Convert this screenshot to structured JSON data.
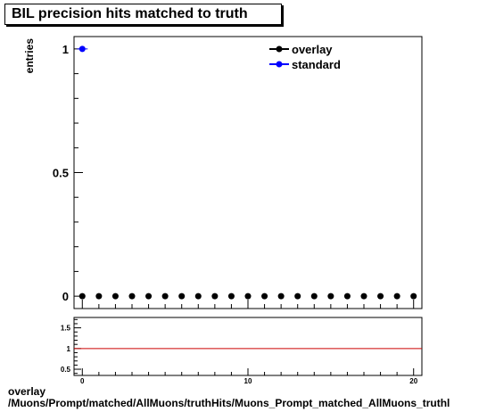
{
  "title": "BIL precision hits matched to truth",
  "ylabel": "entries",
  "footer": {
    "line1": "overlay",
    "line2": "/Muons/Prompt/matched/AllMuons/truthHits/Muons_Prompt_matched_AllMuons_truthl"
  },
  "legend": [
    {
      "label": "overlay",
      "color": "#000000"
    },
    {
      "label": "standard",
      "color": "#0000ff"
    }
  ],
  "chart_data": [
    {
      "type": "scatter",
      "title": "BIL precision hits matched to truth",
      "xlabel": "",
      "ylabel": "entries",
      "xlim": [
        -0.5,
        20.5
      ],
      "ylim": [
        -0.05,
        1.05
      ],
      "yticks": [
        0,
        0.5,
        1
      ],
      "ytick_labels": [
        "0",
        "0.5",
        "1"
      ],
      "grid": false,
      "legend_position": "top-right",
      "series": [
        {
          "name": "overlay",
          "color": "#000000",
          "x": [
            0,
            1,
            2,
            3,
            4,
            5,
            6,
            7,
            8,
            9,
            10,
            11,
            12,
            13,
            14,
            15,
            16,
            17,
            18,
            19,
            20
          ],
          "y": [
            0,
            0,
            0,
            0,
            0,
            0,
            0,
            0,
            0,
            0,
            0,
            0,
            0,
            0,
            0,
            0,
            0,
            0,
            0,
            0,
            0
          ]
        },
        {
          "name": "standard",
          "color": "#0000ff",
          "x": [
            0
          ],
          "y": [
            1
          ]
        }
      ]
    },
    {
      "type": "line",
      "xlim": [
        -0.5,
        20.5
      ],
      "ylim": [
        0.35,
        1.75
      ],
      "xticks": [
        0,
        10,
        20
      ],
      "xtick_labels": [
        "0",
        "10",
        "20"
      ],
      "yticks": [
        0.5,
        1,
        1.5
      ],
      "ytick_labels": [
        "0.5",
        "1",
        "1.5"
      ],
      "reference_line": {
        "y": 1,
        "color": "#cc0000"
      }
    }
  ]
}
